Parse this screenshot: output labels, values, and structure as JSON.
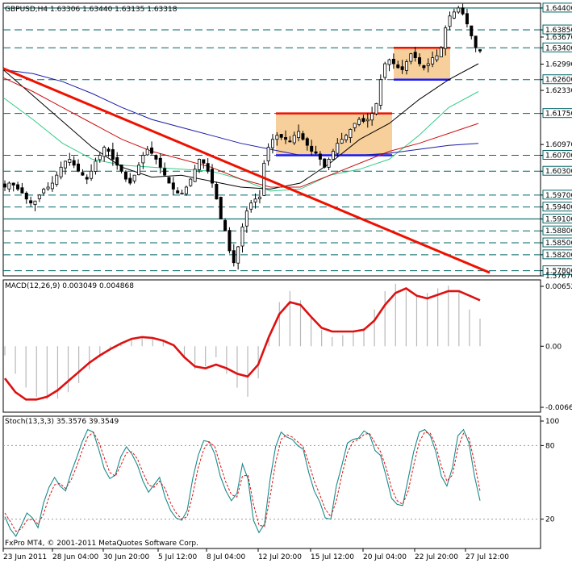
{
  "header": {
    "symbol": "GBPUSD,H4",
    "ohlc": "1.63306 1.63440 1.63135 1.63318"
  },
  "footer": {
    "copyright": "FxPro MT4, © 2001-2011 MetaQuotes Software Corp."
  },
  "colors": {
    "price_line": "#006666",
    "trend_red": "#ee1100",
    "box_fill": "#f7cf9a",
    "box_top": "#ee1100",
    "box_bottom": "#1a1aff",
    "macd_hist": "#b8b8b8",
    "macd_signal": "#dd1111",
    "stoch_main": "#1a8a8a",
    "stoch_signal": "#dd1111",
    "ma_black": "#000000",
    "ma_green": "#33cc88",
    "ma_red": "#cc1111",
    "ma_blue": "#1a1aaa"
  },
  "chart_data": [
    {
      "type": "candlestick",
      "title": "GBPUSD,H4",
      "ylim": [
        1.5767,
        1.6452
      ],
      "y_ticks": [
        "1.64400",
        "1.63850",
        "1.63670",
        "1.63400",
        "1.62990",
        "1.62600",
        "1.62330",
        "1.61750",
        "1.60970",
        "1.60700",
        "1.60300",
        "1.59700",
        "1.59400",
        "1.59100",
        "1.58800",
        "1.58500",
        "1.58200",
        "1.57800",
        "1.57670"
      ],
      "boxed_ticks": [
        "1.64400",
        "1.63850",
        "1.63400",
        "1.62600",
        "1.61750",
        "1.60700",
        "1.60300",
        "1.59700",
        "1.59400",
        "1.59100",
        "1.58800",
        "1.58500",
        "1.58200",
        "1.57800"
      ],
      "horizontal_levels": [
        1.644,
        1.6385,
        1.634,
        1.626,
        1.6175,
        1.607,
        1.603,
        1.597,
        1.594,
        1.591,
        1.588,
        1.585,
        1.582,
        1.578
      ],
      "close_series": [
        1.599,
        1.6,
        1.5995,
        1.5985,
        1.5975,
        1.596,
        1.595,
        1.5955,
        1.597,
        1.5985,
        1.599,
        1.6,
        1.602,
        1.604,
        1.6055,
        1.606,
        1.6045,
        1.603,
        1.602,
        1.601,
        1.603,
        1.6055,
        1.607,
        1.609,
        1.608,
        1.606,
        1.6045,
        1.603,
        1.601,
        1.6,
        1.602,
        1.6045,
        1.607,
        1.6085,
        1.6075,
        1.606,
        1.604,
        1.602,
        1.6,
        1.5985,
        1.5975,
        1.5975,
        1.599,
        1.601,
        1.6035,
        1.606,
        1.605,
        1.603,
        1.6,
        1.596,
        1.591,
        1.588,
        1.583,
        1.58,
        1.584,
        1.589,
        1.593,
        1.595,
        1.596,
        1.5965,
        1.605,
        1.609,
        1.611,
        1.612,
        1.6115,
        1.611,
        1.6105,
        1.612,
        1.613,
        1.611,
        1.6095,
        1.608,
        1.6075,
        1.606,
        1.604,
        1.606,
        1.608,
        1.61,
        1.611,
        1.612,
        1.6135,
        1.615,
        1.616,
        1.6155,
        1.616,
        1.6175,
        1.62,
        1.626,
        1.63,
        1.631,
        1.63,
        1.629,
        1.6285,
        1.6305,
        1.6325,
        1.6315,
        1.63,
        1.629,
        1.63,
        1.6315,
        1.632,
        1.634,
        1.639,
        1.642,
        1.643,
        1.644,
        1.6425,
        1.64,
        1.637,
        1.634,
        1.6332
      ],
      "moving_averages": [
        {
          "color": "black",
          "values": [
            1.6285,
            1.622,
            1.6155,
            1.609,
            1.604,
            1.6015,
            1.602,
            1.6005,
            1.599,
            1.5985,
            1.6,
            1.605,
            1.611,
            1.615,
            1.621,
            1.626,
            1.63
          ]
        },
        {
          "color": "green",
          "values": [
            1.6215,
            1.616,
            1.61,
            1.606,
            1.6045,
            1.604,
            1.6035,
            1.603,
            1.601,
            1.598,
            1.5985,
            1.602,
            1.6035,
            1.606,
            1.612,
            1.619,
            1.623
          ]
        },
        {
          "color": "red",
          "values": [
            1.6265,
            1.623,
            1.619,
            1.615,
            1.611,
            1.608,
            1.606,
            1.604,
            1.601,
            1.599,
            1.599,
            1.602,
            1.605,
            1.608,
            1.61,
            1.6125,
            1.615
          ]
        },
        {
          "color": "blue",
          "values": [
            1.6285,
            1.6275,
            1.6255,
            1.6225,
            1.619,
            1.616,
            1.614,
            1.612,
            1.61,
            1.6085,
            1.607,
            1.607,
            1.607,
            1.6075,
            1.6085,
            1.6095,
            1.61
          ]
        }
      ],
      "trendline": {
        "from": 1.6288,
        "to": 1.5775
      },
      "consolidation_boxes": [
        {
          "top": 1.6175,
          "bottom": 1.607
        },
        {
          "top": 1.634,
          "bottom": 1.626
        }
      ]
    },
    {
      "type": "line",
      "title": "MACD(12,26,9) 0.003049 0.004868",
      "ylim": [
        -0.00665,
        0.00652
      ],
      "y_ticks": [
        "0.00652",
        "0.00",
        "-0.00665"
      ],
      "histogram": [
        -0.001,
        -0.003,
        -0.0045,
        -0.0055,
        -0.0058,
        -0.0057,
        -0.005,
        -0.004,
        -0.0025,
        -0.0012,
        -0.0003,
        0.0004,
        0.0008,
        0.0009,
        0.0008,
        0.0005,
        0.0,
        -0.0012,
        -0.0025,
        -0.0022,
        -0.0012,
        -0.003,
        -0.0045,
        -0.0055,
        -0.0035,
        0.0012,
        0.0048,
        0.006,
        0.005,
        0.0032,
        0.0018,
        0.001,
        0.0012,
        0.0015,
        0.002,
        0.004,
        0.006,
        0.0068,
        0.006,
        0.0055,
        0.0058,
        0.0063,
        0.0066,
        0.006,
        0.004,
        0.003
      ],
      "signal": [
        -0.0035,
        -0.005,
        -0.0058,
        -0.0058,
        -0.0055,
        -0.0048,
        -0.0038,
        -0.0028,
        -0.0018,
        -0.001,
        -0.0003,
        0.0003,
        0.0008,
        0.001,
        0.0009,
        0.0006,
        0.0001,
        -0.0012,
        -0.0022,
        -0.0024,
        -0.002,
        -0.0024,
        -0.003,
        -0.0033,
        -0.002,
        0.001,
        0.0035,
        0.0048,
        0.0045,
        0.0032,
        0.002,
        0.0016,
        0.0016,
        0.0016,
        0.0018,
        0.0028,
        0.0045,
        0.0058,
        0.0063,
        0.0055,
        0.0052,
        0.0056,
        0.006,
        0.006,
        0.0055,
        0.005
      ]
    },
    {
      "type": "line",
      "title": "Stoch(13,3,3) 35.3576 39.3549",
      "ylim": [
        0,
        100
      ],
      "y_ticks": [
        "100",
        "80",
        "20"
      ],
      "main": [
        22,
        12,
        6,
        15,
        25,
        21,
        13,
        33,
        46,
        54,
        47,
        43,
        58,
        70,
        83,
        93,
        91,
        77,
        61,
        53,
        56,
        71,
        79,
        73,
        64,
        51,
        42,
        48,
        54,
        38,
        27,
        21,
        19,
        27,
        53,
        72,
        84,
        83,
        73,
        55,
        43,
        35,
        41,
        65,
        53,
        19,
        9,
        16,
        52,
        79,
        91,
        87,
        85,
        80,
        77,
        58,
        43,
        34,
        21,
        20,
        47,
        64,
        82,
        85,
        86,
        92,
        89,
        76,
        72,
        55,
        37,
        32,
        31,
        53,
        75,
        91,
        93,
        88,
        75,
        55,
        47,
        62,
        88,
        93,
        82,
        55,
        35
      ],
      "signal": [
        25,
        18,
        10,
        12,
        19,
        20,
        16,
        24,
        38,
        48,
        49,
        45,
        52,
        63,
        76,
        87,
        91,
        83,
        70,
        58,
        55,
        64,
        74,
        75,
        69,
        58,
        48,
        46,
        51,
        45,
        33,
        25,
        20,
        22,
        40,
        62,
        77,
        83,
        79,
        64,
        50,
        40,
        38,
        55,
        56,
        32,
        15,
        14,
        38,
        66,
        85,
        89,
        87,
        83,
        79,
        66,
        51,
        40,
        28,
        22,
        35,
        56,
        74,
        83,
        85,
        89,
        90,
        82,
        75,
        62,
        45,
        35,
        32,
        43,
        64,
        83,
        91,
        90,
        80,
        63,
        51,
        56,
        78,
        90,
        86,
        66,
        43
      ]
    }
  ],
  "x_axis_labels": [
    "23 Jun 2011",
    "28 Jun 04:00",
    "30 Jun 20:00",
    "5 Jul 12:00",
    "8 Jul 04:00",
    "12 Jul 20:00",
    "15 Jul 12:00",
    "20 Jul 04:00",
    "22 Jul 20:00",
    "27 Jul 12:00"
  ]
}
